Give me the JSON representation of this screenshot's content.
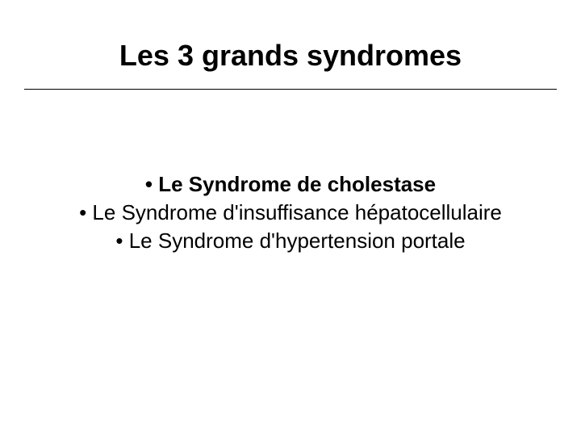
{
  "slide": {
    "title": "Les 3 grands syndromes",
    "bullets": [
      {
        "text": "• Le Syndrome de cholestase",
        "bold": true
      },
      {
        "text": "• Le Syndrome d'insuffisance hépatocellulaire",
        "bold": false
      },
      {
        "text": "• Le Syndrome d'hypertension portale",
        "bold": false
      }
    ]
  },
  "style": {
    "background_color": "#ffffff",
    "title_color": "#000000",
    "title_fontsize": 36,
    "title_fontweight": "bold",
    "bullet_color": "#000000",
    "bullet_fontsize": 26,
    "divider_color": "#000000",
    "font_family": "Arial"
  }
}
